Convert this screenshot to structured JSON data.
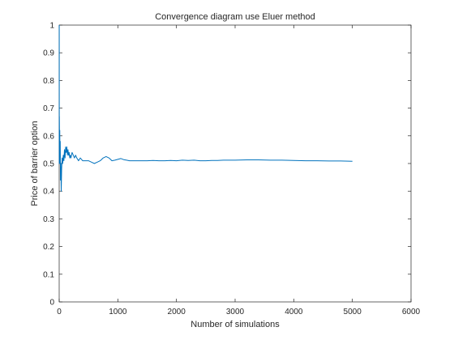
{
  "chart_data": {
    "type": "line",
    "title": "Convergence diagram use Eluer method",
    "xlabel": "Number of simulations",
    "ylabel": "Price of barrier option",
    "xlim": [
      0,
      6000
    ],
    "ylim": [
      0,
      1
    ],
    "x_ticks": [
      0,
      1000,
      2000,
      3000,
      4000,
      5000,
      6000
    ],
    "y_ticks": [
      0,
      0.1,
      0.2,
      0.3,
      0.4,
      0.5,
      0.6,
      0.7,
      0.8,
      0.9,
      1
    ],
    "x_tick_labels": [
      "0",
      "1000",
      "2000",
      "3000",
      "4000",
      "5000",
      "6000"
    ],
    "y_tick_labels": [
      "0",
      "0.1",
      "0.2",
      "0.3",
      "0.4",
      "0.5",
      "0.6",
      "0.7",
      "0.8",
      "0.9",
      "1"
    ],
    "grid": false,
    "line_color": "#0072BD",
    "series": [
      {
        "x": [
          1,
          2,
          3,
          5,
          8,
          10,
          14,
          18,
          22,
          28,
          35,
          42,
          50,
          60,
          70,
          80,
          90,
          100,
          110,
          120,
          130,
          140,
          150,
          160,
          170,
          180,
          190,
          200,
          220,
          240,
          260,
          280,
          300,
          330,
          360,
          400,
          450,
          500,
          550,
          600,
          650,
          700,
          750,
          800,
          850,
          900,
          950,
          1000,
          1050,
          1100,
          1150,
          1200,
          1300,
          1400,
          1500,
          1600,
          1700,
          1800,
          1900,
          2000,
          2100,
          2200,
          2300,
          2400,
          2500,
          2600,
          2700,
          2800,
          2900,
          3000,
          3200,
          3400,
          3600,
          3800,
          4000,
          4200,
          4400,
          4600,
          4800,
          5000
        ],
        "y": [
          1,
          0.5,
          0.67,
          0.6,
          0.5,
          0.62,
          0.5,
          0.58,
          0.44,
          0.5,
          0.4,
          0.48,
          0.52,
          0.5,
          0.53,
          0.51,
          0.55,
          0.52,
          0.56,
          0.54,
          0.56,
          0.53,
          0.55,
          0.53,
          0.54,
          0.52,
          0.53,
          0.52,
          0.54,
          0.53,
          0.52,
          0.53,
          0.52,
          0.51,
          0.52,
          0.51,
          0.51,
          0.51,
          0.505,
          0.5,
          0.505,
          0.51,
          0.52,
          0.525,
          0.52,
          0.51,
          0.512,
          0.515,
          0.518,
          0.514,
          0.512,
          0.51,
          0.51,
          0.51,
          0.51,
          0.511,
          0.51,
          0.51,
          0.511,
          0.51,
          0.512,
          0.511,
          0.512,
          0.51,
          0.51,
          0.511,
          0.511,
          0.512,
          0.512,
          0.512,
          0.513,
          0.513,
          0.512,
          0.512,
          0.511,
          0.51,
          0.51,
          0.509,
          0.509,
          0.508
        ]
      }
    ]
  }
}
